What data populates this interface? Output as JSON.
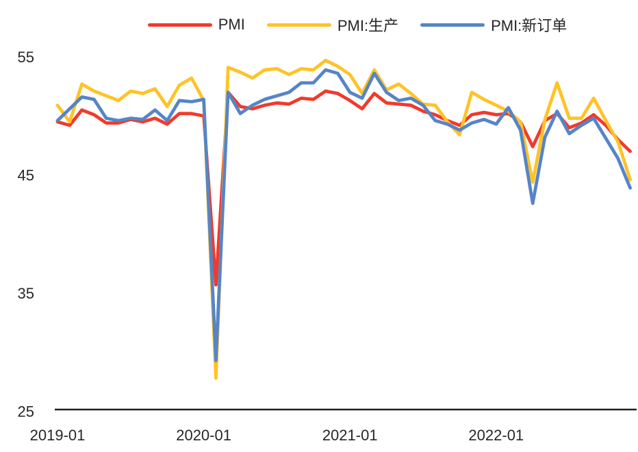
{
  "chart_data": {
    "type": "line",
    "title": "",
    "xlabel": "",
    "ylabel": "",
    "grid": false,
    "legend_position": "top",
    "ylim": [
      25,
      55
    ],
    "y_ticks": [
      55,
      45,
      35,
      25
    ],
    "x_tick_labels": [
      "2019-01",
      "2020-01",
      "2021-01",
      "2022-01"
    ],
    "x": [
      "2019-01",
      "2019-02",
      "2019-03",
      "2019-04",
      "2019-05",
      "2019-06",
      "2019-07",
      "2019-08",
      "2019-09",
      "2019-10",
      "2019-11",
      "2019-12",
      "2020-01",
      "2020-02",
      "2020-03",
      "2020-04",
      "2020-05",
      "2020-06",
      "2020-07",
      "2020-08",
      "2020-09",
      "2020-10",
      "2020-11",
      "2020-12",
      "2021-01",
      "2021-02",
      "2021-03",
      "2021-04",
      "2021-05",
      "2021-06",
      "2021-07",
      "2021-08",
      "2021-09",
      "2021-10",
      "2021-11",
      "2021-12",
      "2022-01",
      "2022-02",
      "2022-03",
      "2022-04",
      "2022-05",
      "2022-06",
      "2022-07",
      "2022-08",
      "2022-09",
      "2022-10",
      "2022-11",
      "2022-12"
    ],
    "series": [
      {
        "name": "PMI",
        "color": "#F13A2B",
        "values": [
          49.5,
          49.2,
          50.5,
          50.1,
          49.4,
          49.4,
          49.7,
          49.5,
          49.8,
          49.3,
          50.2,
          50.2,
          50.0,
          35.7,
          52.0,
          50.8,
          50.6,
          50.9,
          51.1,
          51.0,
          51.5,
          51.4,
          52.1,
          51.9,
          51.3,
          50.6,
          51.9,
          51.1,
          51.0,
          50.9,
          50.4,
          50.1,
          49.6,
          49.2,
          50.1,
          50.3,
          50.1,
          50.2,
          49.5,
          47.4,
          49.6,
          50.2,
          49.0,
          49.4,
          50.1,
          49.2,
          48.0,
          47.0
        ]
      },
      {
        "name": "PMI:生产",
        "color": "#FFC326",
        "values": [
          50.9,
          49.5,
          52.7,
          52.1,
          51.7,
          51.3,
          52.1,
          51.9,
          52.3,
          50.8,
          52.6,
          53.2,
          51.3,
          27.8,
          54.1,
          53.7,
          53.2,
          53.9,
          54.0,
          53.5,
          54.0,
          53.9,
          54.7,
          54.2,
          53.5,
          51.9,
          53.9,
          52.2,
          52.7,
          51.9,
          51.0,
          50.9,
          49.5,
          48.4,
          52.0,
          51.4,
          50.9,
          50.4,
          49.5,
          44.4,
          49.7,
          52.8,
          49.8,
          49.8,
          51.5,
          49.6,
          47.8,
          44.6
        ]
      },
      {
        "name": "PMI:新订单",
        "color": "#5585C7",
        "values": [
          49.6,
          50.6,
          51.6,
          51.4,
          49.8,
          49.6,
          49.8,
          49.7,
          50.5,
          49.6,
          51.3,
          51.2,
          51.4,
          29.3,
          52.0,
          50.2,
          50.9,
          51.4,
          51.7,
          52.0,
          52.8,
          52.8,
          53.9,
          53.6,
          52.0,
          51.5,
          53.6,
          52.0,
          51.3,
          51.5,
          50.9,
          49.6,
          49.3,
          48.8,
          49.4,
          49.7,
          49.3,
          50.7,
          48.8,
          42.6,
          48.2,
          50.4,
          48.5,
          49.2,
          49.8,
          48.1,
          46.4,
          43.9
        ]
      }
    ],
    "axis_color": "#1f1f1f",
    "text_color": "#262626"
  }
}
